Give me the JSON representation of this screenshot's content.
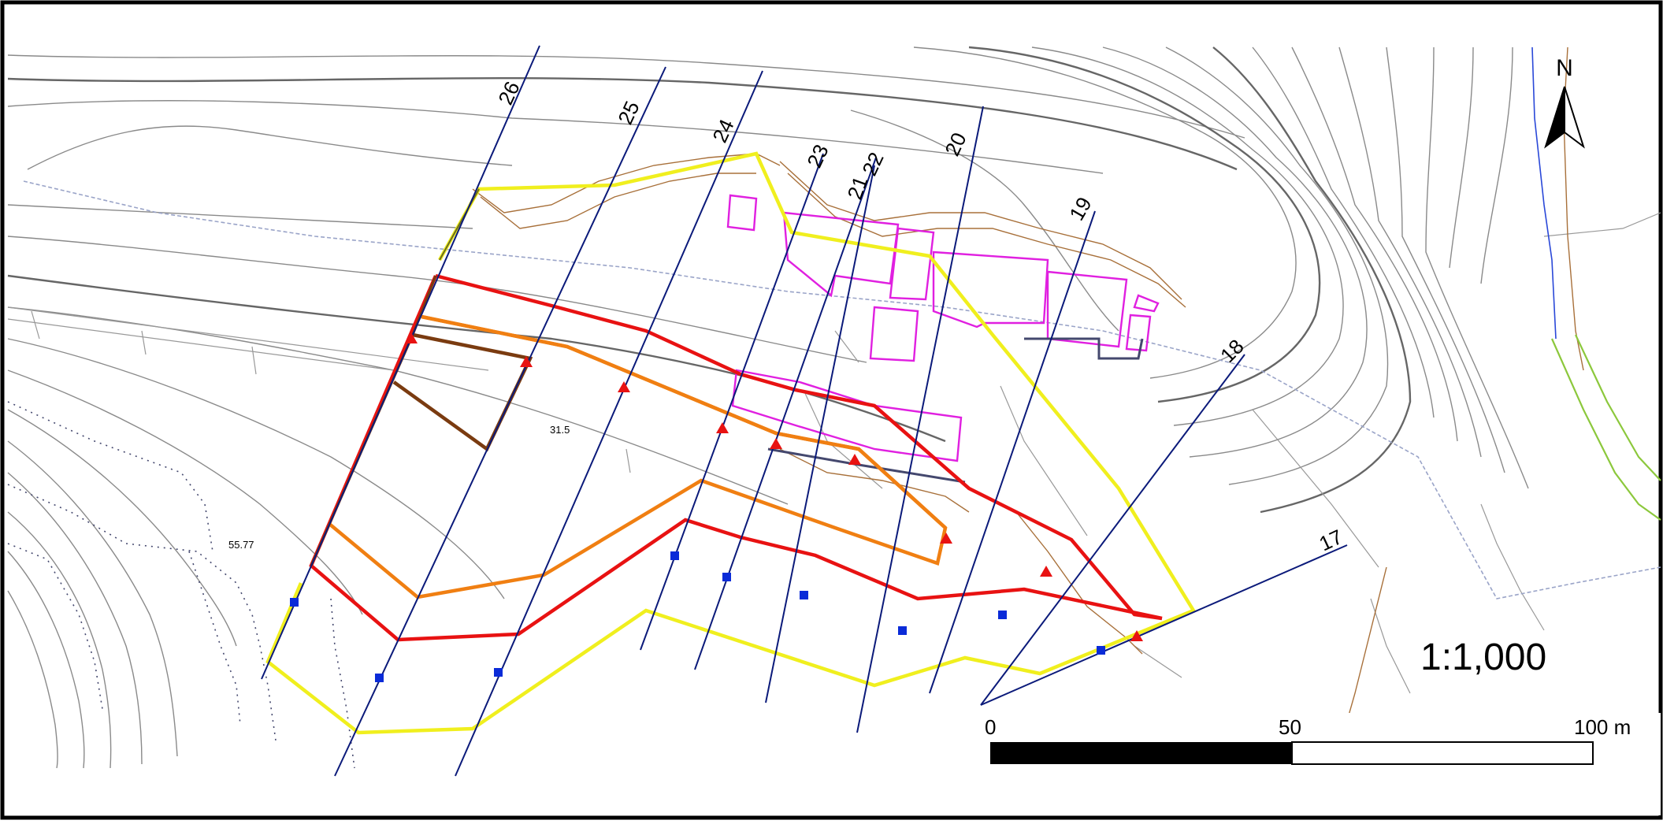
{
  "map": {
    "scale_text": "1:1,000",
    "north_label": "N",
    "scalebar": {
      "labels": [
        "0",
        "50",
        "100 m"
      ]
    },
    "section_line_labels": [
      "26",
      "25",
      "24",
      "23",
      "22",
      "21",
      "20",
      "19",
      "18",
      "17"
    ],
    "spot_heights": [
      "31.5",
      "55.77"
    ],
    "colors": {
      "section_lines": "#0b1a7a",
      "red_boundary": "#e81212",
      "orange_boundary": "#f07f12",
      "yellow_boundary": "#f0ef1e",
      "brown_block": "#7a3b10",
      "buildings": "#e020e0",
      "terraces": "#a8703a",
      "contours": "#808080",
      "markers_square": "#0a2bd8",
      "markers_triangle": "#e81212",
      "stream": "#9aa4c8",
      "green_feature": "#8cc83c"
    }
  }
}
